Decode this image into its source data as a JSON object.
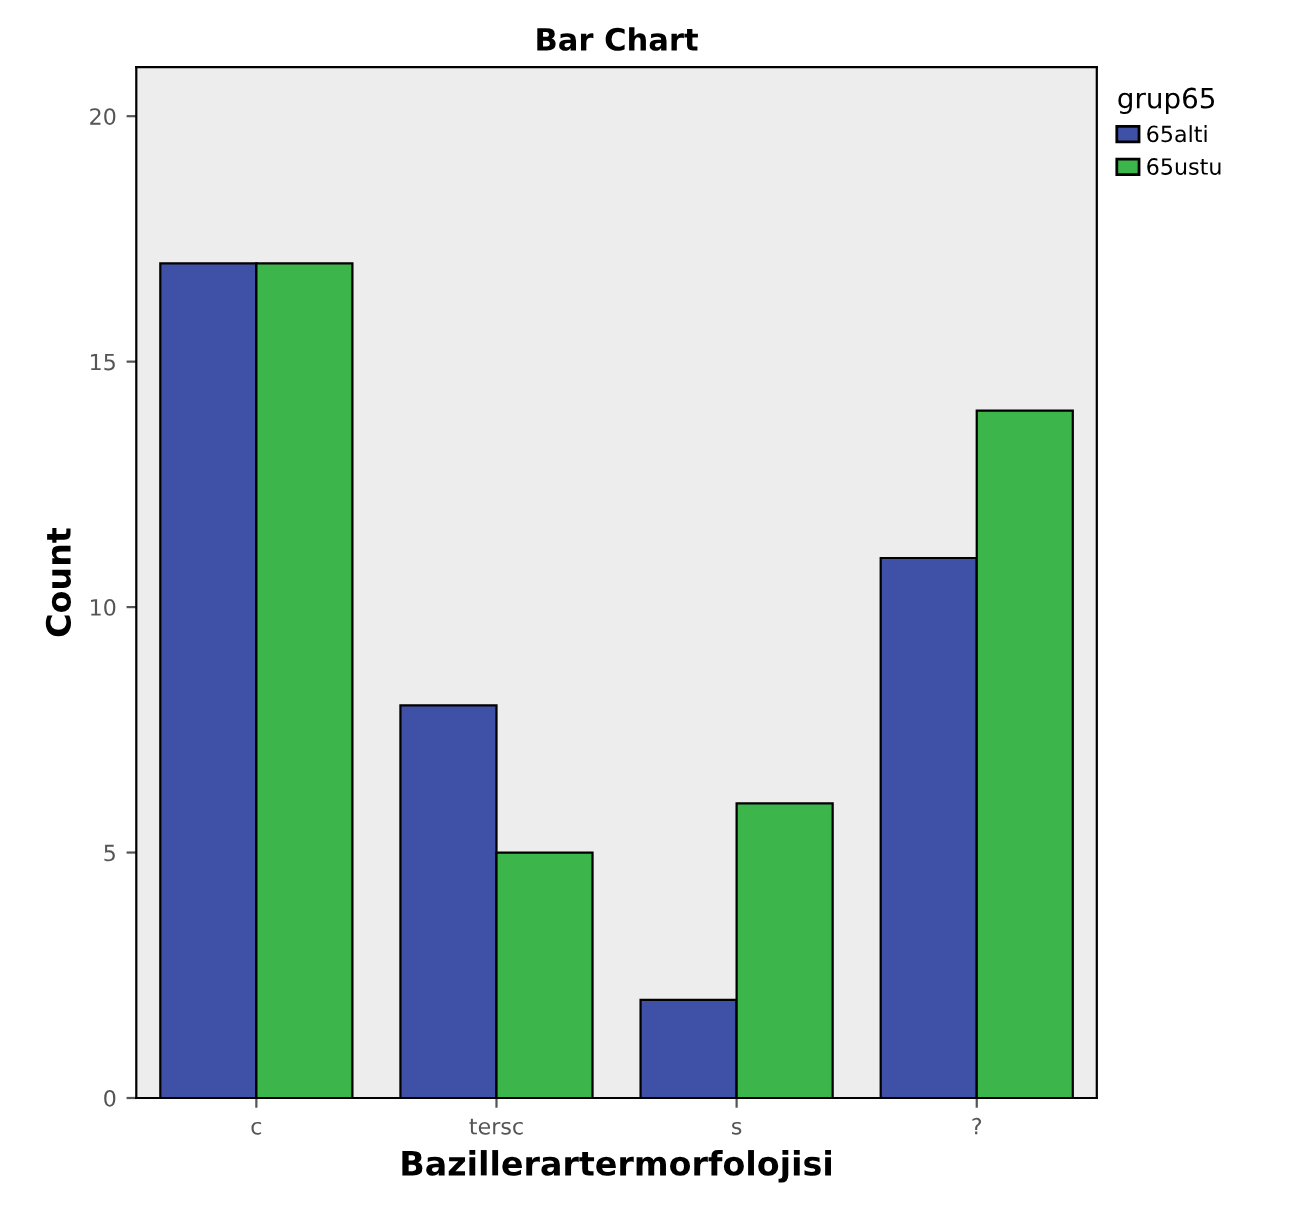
{
  "chart_data": {
    "type": "bar",
    "title": "Bar Chart",
    "xlabel": "Bazillerartermorfolojisi",
    "ylabel": "Count",
    "legend_title": "grup65",
    "categories": [
      "c",
      "tersc",
      "s",
      "?"
    ],
    "series": [
      {
        "name": "65alti",
        "color": "#3f51a6",
        "values": [
          17,
          8,
          2,
          11
        ]
      },
      {
        "name": "65ustu",
        "color": "#3cb54a",
        "values": [
          17,
          5,
          6,
          14
        ]
      }
    ],
    "ylim": [
      0,
      21
    ],
    "yticks": [
      0,
      5,
      10,
      15,
      20
    ],
    "legend": "top right",
    "grid": false
  }
}
